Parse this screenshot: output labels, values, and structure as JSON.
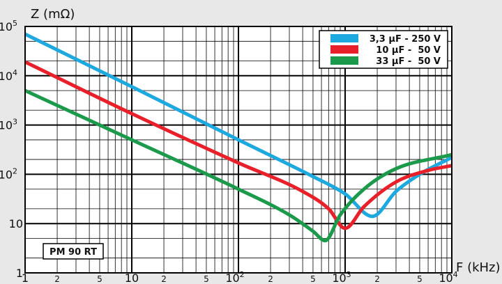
{
  "chart_data": {
    "type": "line",
    "ylabel": "Z (mΩ)",
    "xlabel": "F (kHz)",
    "x_scale": "log",
    "y_scale": "log",
    "xlim": [
      1,
      10000
    ],
    "ylim": [
      1,
      100000
    ],
    "grid": true,
    "legend_position": "top-right",
    "plot_background": "#ffffff",
    "x_ticks": [
      {
        "value": 1,
        "label": "1",
        "major": true
      },
      {
        "value": 2,
        "label": "2",
        "major": false
      },
      {
        "value": 5,
        "label": "5",
        "major": false
      },
      {
        "value": 10,
        "label": "10",
        "major": true
      },
      {
        "value": 20,
        "label": "2",
        "major": false
      },
      {
        "value": 50,
        "label": "5",
        "major": false
      },
      {
        "value": 100,
        "label": "10",
        "sup": "2",
        "major": true
      },
      {
        "value": 200,
        "label": "2",
        "major": false
      },
      {
        "value": 500,
        "label": "5",
        "major": false
      },
      {
        "value": 1000,
        "label": "10",
        "sup": "3",
        "major": true
      },
      {
        "value": 2000,
        "label": "2",
        "major": false
      },
      {
        "value": 5000,
        "label": "5",
        "major": false
      },
      {
        "value": 10000,
        "label": "10",
        "sup": "4",
        "major": true
      }
    ],
    "y_ticks": [
      {
        "value": 1,
        "label": "1"
      },
      {
        "value": 10,
        "label": "10"
      },
      {
        "value": 100,
        "label": "10",
        "sup": "2"
      },
      {
        "value": 1000,
        "label": "10",
        "sup": "3"
      },
      {
        "value": 10000,
        "label": "10",
        "sup": "4"
      },
      {
        "value": 100000,
        "label": "10",
        "sup": "5"
      }
    ],
    "series": [
      {
        "name": "3,3 µF - 250 V",
        "color": "#1ea8e0",
        "points": [
          [
            1,
            70000
          ],
          [
            10,
            6000
          ],
          [
            100,
            500
          ],
          [
            500,
            90
          ],
          [
            1000,
            40
          ],
          [
            1800,
            14
          ],
          [
            3000,
            45
          ],
          [
            5000,
            100
          ],
          [
            10000,
            220
          ]
        ]
      },
      {
        "name": "10 µF -  50 V",
        "color": "#e8202a",
        "points": [
          [
            1,
            19000
          ],
          [
            10,
            1700
          ],
          [
            100,
            170
          ],
          [
            400,
            45
          ],
          [
            700,
            20
          ],
          [
            1000,
            8
          ],
          [
            1500,
            22
          ],
          [
            3000,
            70
          ],
          [
            6000,
            120
          ],
          [
            10000,
            150
          ]
        ]
      },
      {
        "name": "33 µF -  50 V",
        "color": "#1a9a4a",
        "points": [
          [
            1,
            5000
          ],
          [
            10,
            500
          ],
          [
            100,
            50
          ],
          [
            300,
            15
          ],
          [
            500,
            7
          ],
          [
            650,
            4.5
          ],
          [
            900,
            15
          ],
          [
            1500,
            50
          ],
          [
            3000,
            130
          ],
          [
            10000,
            250
          ]
        ]
      }
    ],
    "annotation": "PM 90 RT"
  }
}
